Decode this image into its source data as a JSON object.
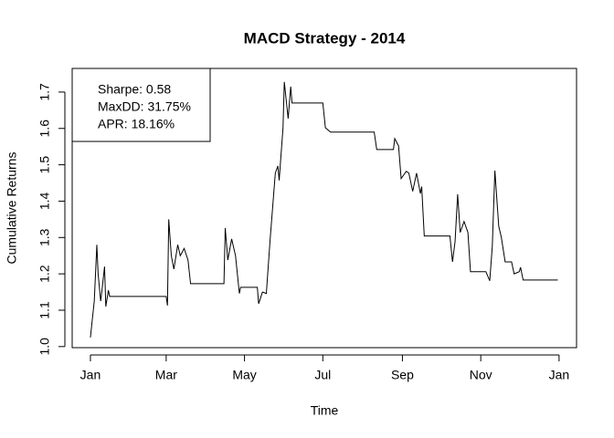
{
  "chart_data": {
    "type": "line",
    "title": "MACD Strategy - 2014",
    "x_label": "Time",
    "y_label": "Cumulative Returns",
    "annotations": [
      "Sharpe: 0.58",
      "MaxDD: 31.75%",
      "APR: 18.16%"
    ],
    "x": [
      0,
      3,
      5,
      6,
      8,
      9,
      11,
      12,
      14,
      15,
      59,
      60,
      61,
      63,
      65,
      68,
      70,
      73,
      76,
      78,
      104,
      105,
      107,
      110,
      113,
      116,
      117,
      130,
      131,
      134,
      137,
      140,
      144,
      146,
      147,
      150,
      151,
      154,
      156,
      157,
      181,
      183,
      187,
      221,
      223,
      236,
      237,
      240,
      242,
      246,
      248,
      251,
      254,
      257,
      258,
      260,
      280,
      282,
      284,
      286,
      288,
      291,
      294,
      296,
      308,
      311,
      313,
      315,
      318,
      320,
      323,
      328,
      330,
      334,
      335,
      337,
      364
    ],
    "series": [
      {
        "name": "Cumulative Returns",
        "color": "#000000",
        "values": [
          1.025,
          1.125,
          1.28,
          1.2,
          1.125,
          1.155,
          1.22,
          1.11,
          1.155,
          1.138,
          1.138,
          1.113,
          1.35,
          1.25,
          1.213,
          1.28,
          1.25,
          1.27,
          1.238,
          1.173,
          1.173,
          1.326,
          1.238,
          1.296,
          1.25,
          1.146,
          1.163,
          1.163,
          1.118,
          1.15,
          1.146,
          1.296,
          1.477,
          1.497,
          1.457,
          1.602,
          1.728,
          1.627,
          1.715,
          1.67,
          1.67,
          1.602,
          1.59,
          1.59,
          1.542,
          1.542,
          1.572,
          1.552,
          1.462,
          1.482,
          1.477,
          1.427,
          1.477,
          1.421,
          1.44,
          1.304,
          1.304,
          1.233,
          1.289,
          1.419,
          1.314,
          1.344,
          1.314,
          1.206,
          1.206,
          1.181,
          1.276,
          1.484,
          1.331,
          1.301,
          1.233,
          1.233,
          1.2,
          1.206,
          1.218,
          1.183,
          1.183
        ]
      }
    ],
    "xlim": [
      -14.2,
      378.6
    ],
    "ylim": [
      0.997,
      1.765
    ],
    "xticks": [
      {
        "value": 0,
        "label": "Jan"
      },
      {
        "value": 59,
        "label": "Mar"
      },
      {
        "value": 120,
        "label": "May"
      },
      {
        "value": 181,
        "label": "Jul"
      },
      {
        "value": 243,
        "label": "Sep"
      },
      {
        "value": 304,
        "label": "Nov"
      },
      {
        "value": 365,
        "label": "Jan"
      }
    ],
    "yticks": [
      {
        "value": 1,
        "label": "1.0"
      },
      1.1,
      1.2,
      1.3,
      1.4,
      1.5,
      1.6,
      1.7
    ]
  }
}
